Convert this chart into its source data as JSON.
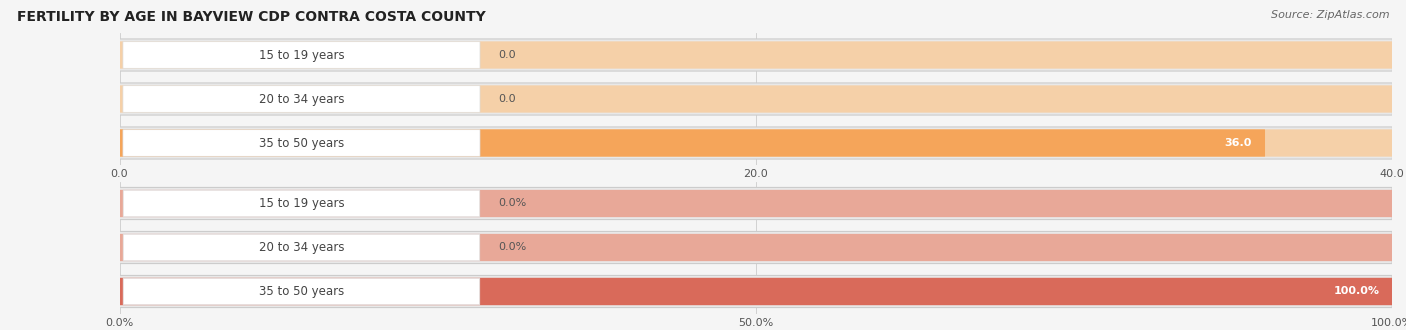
{
  "title": "FERTILITY BY AGE IN BAYVIEW CDP CONTRA COSTA COUNTY",
  "source": "Source: ZipAtlas.com",
  "top_chart": {
    "categories": [
      "15 to 19 years",
      "20 to 34 years",
      "35 to 50 years"
    ],
    "values": [
      0.0,
      0.0,
      36.0
    ],
    "xlim": [
      0,
      40
    ],
    "xticks": [
      0.0,
      20.0,
      40.0
    ],
    "xtick_labels": [
      "0.0",
      "20.0",
      "40.0"
    ],
    "bar_color": "#f5a55a",
    "bar_bg_color": "#f5d0a8",
    "tube_bg_color": "#e8e8e8",
    "white_label_bg": "#ffffff",
    "label_color": "#444444"
  },
  "bottom_chart": {
    "categories": [
      "15 to 19 years",
      "20 to 34 years",
      "35 to 50 years"
    ],
    "values": [
      0.0,
      0.0,
      100.0
    ],
    "xlim": [
      0,
      100
    ],
    "xticks": [
      0.0,
      50.0,
      100.0
    ],
    "xtick_labels": [
      "0.0%",
      "50.0%",
      "100.0%"
    ],
    "bar_color": "#d96a5a",
    "bar_bg_color": "#e8a898",
    "tube_bg_color": "#e8e8e8",
    "white_label_bg": "#ffffff",
    "label_color": "#444444"
  },
  "fig_bg_color": "#f5f5f5",
  "title_fontsize": 10,
  "source_fontsize": 8,
  "label_fontsize": 8.5,
  "value_fontsize": 8,
  "tick_fontsize": 8
}
